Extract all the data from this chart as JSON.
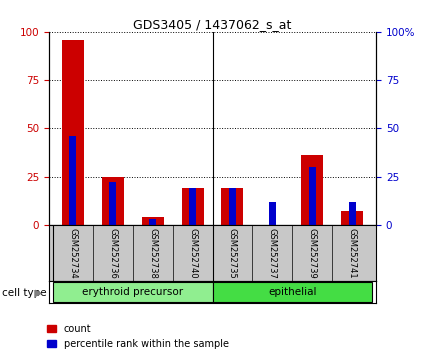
{
  "title": "GDS3405 / 1437062_s_at",
  "samples": [
    "GSM252734",
    "GSM252736",
    "GSM252738",
    "GSM252740",
    "GSM252735",
    "GSM252737",
    "GSM252739",
    "GSM252741"
  ],
  "count_values": [
    96,
    25,
    4,
    19,
    19,
    0,
    36,
    7
  ],
  "percentile_values": [
    46,
    22,
    3,
    19,
    19,
    12,
    30,
    12
  ],
  "groups": [
    {
      "label": "erythroid precursor",
      "start": 0,
      "end": 4,
      "color": "#90EE90"
    },
    {
      "label": "epithelial",
      "start": 4,
      "end": 8,
      "color": "#44DD44"
    }
  ],
  "ylim": [
    0,
    100
  ],
  "yticks": [
    0,
    25,
    50,
    75,
    100
  ],
  "count_bar_width": 0.55,
  "pct_bar_width": 0.18,
  "count_color": "#CC0000",
  "percentile_color": "#0000CC",
  "left_tick_color": "#CC0000",
  "right_tick_color": "#0000CC",
  "bg_color": "#FFFFFF",
  "xlabel_area_color": "#C8C8C8",
  "legend_count_label": "count",
  "legend_percentile_label": "percentile rank within the sample",
  "cell_type_label": "cell type"
}
